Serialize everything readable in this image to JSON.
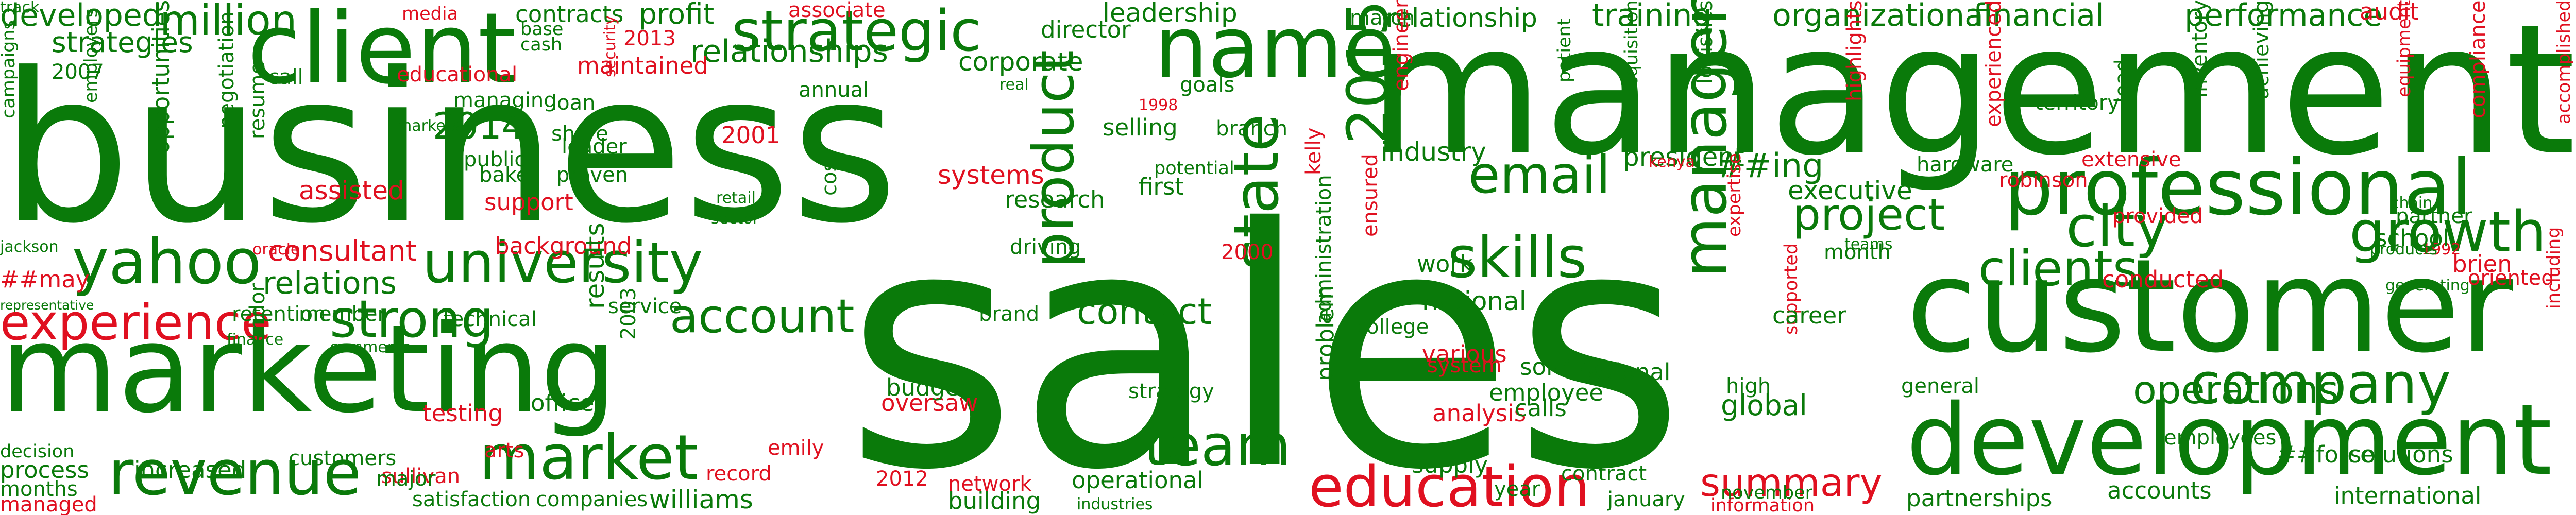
{
  "colors": {
    "primary": "#0a7a0a",
    "accent": "#e01020",
    "background": "#ffffff"
  },
  "words": [
    {
      "text": "sales",
      "c": "g"
    },
    {
      "text": "business",
      "c": "g"
    },
    {
      "text": "management",
      "c": "g"
    },
    {
      "text": "marketing",
      "c": "g"
    },
    {
      "text": "customer",
      "c": "g"
    },
    {
      "text": "development",
      "c": "g"
    },
    {
      "text": "client",
      "c": "g"
    },
    {
      "text": "name",
      "c": "g"
    },
    {
      "text": "strategic",
      "c": "g"
    },
    {
      "text": "professional",
      "c": "g"
    },
    {
      "text": "university",
      "c": "g"
    },
    {
      "text": "manager",
      "c": "g"
    },
    {
      "text": "yahoo",
      "c": "g"
    },
    {
      "text": "revenue",
      "c": "g"
    },
    {
      "text": "market",
      "c": "g"
    },
    {
      "text": "experience",
      "c": "r"
    },
    {
      "text": "education",
      "c": "r"
    },
    {
      "text": "team",
      "c": "g"
    },
    {
      "text": "company",
      "c": "g"
    },
    {
      "text": "city",
      "c": "g"
    },
    {
      "text": "growth",
      "c": "g"
    },
    {
      "text": "clients",
      "c": "g"
    },
    {
      "text": "skills",
      "c": "g"
    },
    {
      "text": "email",
      "c": "g"
    },
    {
      "text": "state",
      "c": "g"
    },
    {
      "text": "2015",
      "c": "g"
    },
    {
      "text": "account",
      "c": "g"
    },
    {
      "text": "strong",
      "c": "g"
    },
    {
      "text": "product",
      "c": "g"
    },
    {
      "text": "project",
      "c": "g"
    },
    {
      "text": "summary",
      "c": "r"
    },
    {
      "text": "contact",
      "c": "g"
    },
    {
      "text": "operations",
      "c": "g"
    },
    {
      "text": "relationships",
      "c": "g"
    },
    {
      "text": "million",
      "c": "g"
    },
    {
      "text": "developed",
      "c": "g"
    },
    {
      "text": "strategies",
      "c": "g"
    },
    {
      "text": "2014",
      "c": "g"
    },
    {
      "text": "financial",
      "c": "g"
    },
    {
      "text": "performance",
      "c": "g"
    },
    {
      "text": "relationship",
      "c": "g"
    },
    {
      "text": "training",
      "c": "g"
    },
    {
      "text": "organizational",
      "c": "g"
    },
    {
      "text": "leadership",
      "c": "g"
    },
    {
      "text": "corporate",
      "c": "g"
    },
    {
      "text": "director",
      "c": "g"
    },
    {
      "text": "relations",
      "c": "g"
    },
    {
      "text": "industry",
      "c": "g"
    },
    {
      "text": "president",
      "c": "g"
    },
    {
      "text": "##ing",
      "c": "g"
    },
    {
      "text": "executive",
      "c": "g"
    },
    {
      "text": "consultant",
      "c": "r"
    },
    {
      "text": "assisted",
      "c": "r"
    },
    {
      "text": "profit",
      "c": "g"
    },
    {
      "text": "contracts",
      "c": "g"
    },
    {
      "text": "media",
      "c": "r"
    },
    {
      "text": "2013",
      "c": "r"
    },
    {
      "text": "associate",
      "c": "r"
    },
    {
      "text": "maintained",
      "c": "r"
    },
    {
      "text": "educational",
      "c": "r"
    },
    {
      "text": "2001",
      "c": "r"
    },
    {
      "text": "systems",
      "c": "r"
    },
    {
      "text": "support",
      "c": "r"
    },
    {
      "text": "background",
      "c": "r"
    },
    {
      "text": "##may",
      "c": "r"
    },
    {
      "text": "testing",
      "c": "r"
    },
    {
      "text": "oversaw",
      "c": "r"
    },
    {
      "text": "arts",
      "c": "r"
    },
    {
      "text": "emily",
      "c": "r"
    },
    {
      "text": "record",
      "c": "r"
    },
    {
      "text": "sullivan",
      "c": "r"
    },
    {
      "text": "managed",
      "c": "r"
    },
    {
      "text": "2012",
      "c": "r"
    },
    {
      "text": "network",
      "c": "r"
    },
    {
      "text": "analysis",
      "c": "r"
    },
    {
      "text": "various",
      "c": "r"
    },
    {
      "text": "system",
      "c": "r"
    },
    {
      "text": "ensured",
      "c": "r"
    },
    {
      "text": "kelly",
      "c": "r"
    },
    {
      "text": "2000",
      "c": "r"
    },
    {
      "text": "oracle",
      "c": "r"
    },
    {
      "text": "1998",
      "c": "r"
    },
    {
      "text": "security",
      "c": "r"
    },
    {
      "text": "engineer",
      "c": "r"
    },
    {
      "text": "kenya",
      "c": "r"
    },
    {
      "text": "highlights",
      "c": "r"
    },
    {
      "text": "experienced",
      "c": "r"
    },
    {
      "text": "robinson",
      "c": "r"
    },
    {
      "text": "extensive",
      "c": "r"
    },
    {
      "text": "provided",
      "c": "r"
    },
    {
      "text": "conducted",
      "c": "r"
    },
    {
      "text": "brien",
      "c": "r"
    },
    {
      "text": "1992",
      "c": "r"
    },
    {
      "text": "audit",
      "c": "r"
    },
    {
      "text": "equipment",
      "c": "r"
    },
    {
      "text": "accomplished",
      "c": "r"
    },
    {
      "text": "including",
      "c": "r"
    },
    {
      "text": "expertise",
      "c": "r"
    },
    {
      "text": "supported",
      "c": "r"
    },
    {
      "text": "information",
      "c": "r"
    },
    {
      "text": "hardware",
      "c": "g"
    },
    {
      "text": "compliance",
      "c": "r"
    },
    {
      "text": "oriented",
      "c": "r"
    },
    {
      "text": "2007",
      "c": "g"
    },
    {
      "text": "employers",
      "c": "g"
    },
    {
      "text": "opportunities",
      "c": "g"
    },
    {
      "text": "negotiation",
      "c": "g"
    },
    {
      "text": "resume",
      "c": "g"
    },
    {
      "text": "campaigns",
      "c": "g"
    },
    {
      "text": "jackson",
      "c": "g"
    },
    {
      "text": "representative",
      "c": "g"
    },
    {
      "text": "decision",
      "c": "g"
    },
    {
      "text": "process",
      "c": "g"
    },
    {
      "text": "months",
      "c": "g"
    },
    {
      "text": "increased",
      "c": "g"
    },
    {
      "text": "customers",
      "c": "g"
    },
    {
      "text": "major",
      "c": "g"
    },
    {
      "text": "satisfaction",
      "c": "g"
    },
    {
      "text": "companies",
      "c": "g"
    },
    {
      "text": "williams",
      "c": "g"
    },
    {
      "text": "building",
      "c": "g"
    },
    {
      "text": "operational",
      "c": "g"
    },
    {
      "text": "industries",
      "c": "g"
    },
    {
      "text": "supply",
      "c": "g"
    },
    {
      "text": "year",
      "c": "g"
    },
    {
      "text": "contract",
      "c": "g"
    },
    {
      "text": "january",
      "c": "g"
    },
    {
      "text": "november",
      "c": "g"
    },
    {
      "text": "partnerships",
      "c": "g"
    },
    {
      "text": "accounts",
      "c": "g"
    },
    {
      "text": "international",
      "c": "g"
    },
    {
      "text": "##force",
      "c": "g"
    },
    {
      "text": "employees",
      "c": "g"
    },
    {
      "text": "solutions",
      "c": "g"
    },
    {
      "text": "general",
      "c": "g"
    },
    {
      "text": "global",
      "c": "g"
    },
    {
      "text": "high",
      "c": "g"
    },
    {
      "text": "teams",
      "c": "g"
    },
    {
      "text": "career",
      "c": "g"
    },
    {
      "text": "calls",
      "c": "g"
    },
    {
      "text": "regional",
      "c": "g"
    },
    {
      "text": "employee",
      "c": "g"
    },
    {
      "text": "solving",
      "c": "g"
    },
    {
      "text": "college",
      "c": "g"
    },
    {
      "text": "national",
      "c": "g"
    },
    {
      "text": "work",
      "c": "g"
    },
    {
      "text": "problem",
      "c": "g"
    },
    {
      "text": "administration",
      "c": "g"
    },
    {
      "text": "strategy",
      "c": "g"
    },
    {
      "text": "budget",
      "c": "g"
    },
    {
      "text": "brand",
      "c": "g"
    },
    {
      "text": "2009",
      "c": "g"
    },
    {
      "text": "driving",
      "c": "g"
    },
    {
      "text": "research",
      "c": "g"
    },
    {
      "text": "first",
      "c": "g"
    },
    {
      "text": "potential",
      "c": "g"
    },
    {
      "text": "branch",
      "c": "g"
    },
    {
      "text": "selling",
      "c": "g"
    },
    {
      "text": "goals",
      "c": "g"
    },
    {
      "text": "real",
      "c": "g"
    },
    {
      "text": "annual",
      "c": "g"
    },
    {
      "text": "march",
      "c": "g"
    },
    {
      "text": "base",
      "c": "g"
    },
    {
      "text": "cash",
      "c": "g"
    },
    {
      "text": "call",
      "c": "g"
    },
    {
      "text": "markets",
      "c": "g"
    },
    {
      "text": "managing",
      "c": "g"
    },
    {
      "text": "loan",
      "c": "g"
    },
    {
      "text": "share",
      "c": "g"
    },
    {
      "text": "public",
      "c": "g"
    },
    {
      "text": "leader",
      "c": "g"
    },
    {
      "text": "baker",
      "c": "g"
    },
    {
      "text": "proven",
      "c": "g"
    },
    {
      "text": "retail",
      "c": "g"
    },
    {
      "text": "sector",
      "c": "g"
    },
    {
      "text": "cost",
      "c": "g"
    },
    {
      "text": "service",
      "c": "g"
    },
    {
      "text": "technical",
      "c": "g"
    },
    {
      "text": "retention",
      "c": "g"
    },
    {
      "text": "member",
      "c": "g"
    },
    {
      "text": "finance",
      "c": "g"
    },
    {
      "text": "commerce",
      "c": "g"
    },
    {
      "text": "results",
      "c": "g"
    },
    {
      "text": "office",
      "c": "g"
    },
    {
      "text": "2003",
      "c": "g"
    },
    {
      "text": "vendor",
      "c": "g"
    },
    {
      "text": "patient",
      "c": "g"
    },
    {
      "text": "acquisition",
      "c": "g"
    },
    {
      "text": "logistics",
      "c": "g"
    },
    {
      "text": "territory",
      "c": "g"
    },
    {
      "text": "lead",
      "c": "g"
    },
    {
      "text": "inventory",
      "c": "g"
    },
    {
      "text": "achieving",
      "c": "g"
    },
    {
      "text": "chain",
      "c": "g"
    },
    {
      "text": "partner",
      "c": "g"
    },
    {
      "text": "school",
      "c": "g"
    },
    {
      "text": "products",
      "c": "g"
    },
    {
      "text": "generating",
      "c": "g"
    },
    {
      "text": "month",
      "c": "g"
    },
    {
      "text": "track",
      "c": "g"
    }
  ]
}
